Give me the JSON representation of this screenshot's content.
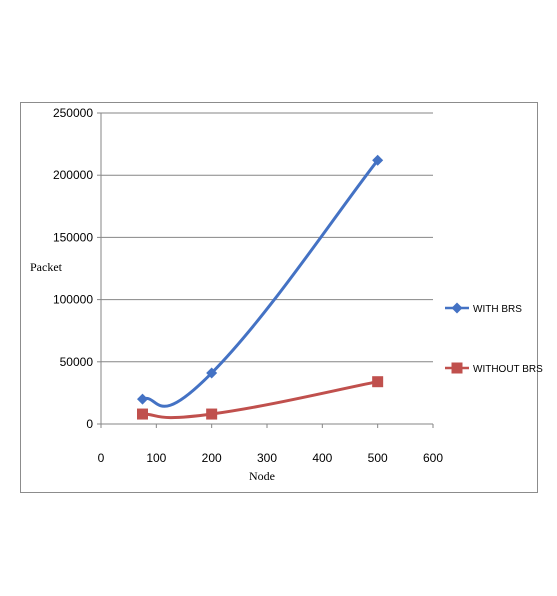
{
  "chart_data": {
    "type": "line",
    "xlabel": "Node",
    "ylabel": "Packet",
    "xlim": [
      0,
      600
    ],
    "ylim": [
      0,
      250000
    ],
    "xticks": [
      "0",
      "100",
      "200",
      "300",
      "400",
      "500",
      "600"
    ],
    "yticks": [
      "0",
      "50000",
      "100000",
      "150000",
      "200000",
      "250000"
    ],
    "grid": "horizontal",
    "legend_position": "right",
    "series": [
      {
        "name": "WITH BRS",
        "color": "#4472c4",
        "marker": "diamond",
        "x": [
          75,
          200,
          500
        ],
        "y": [
          20000,
          41000,
          212000
        ]
      },
      {
        "name": "WITHOUT BRS",
        "color": "#c0504d",
        "marker": "square",
        "x": [
          75,
          200,
          500
        ],
        "y": [
          8000,
          8000,
          34000
        ]
      }
    ]
  }
}
